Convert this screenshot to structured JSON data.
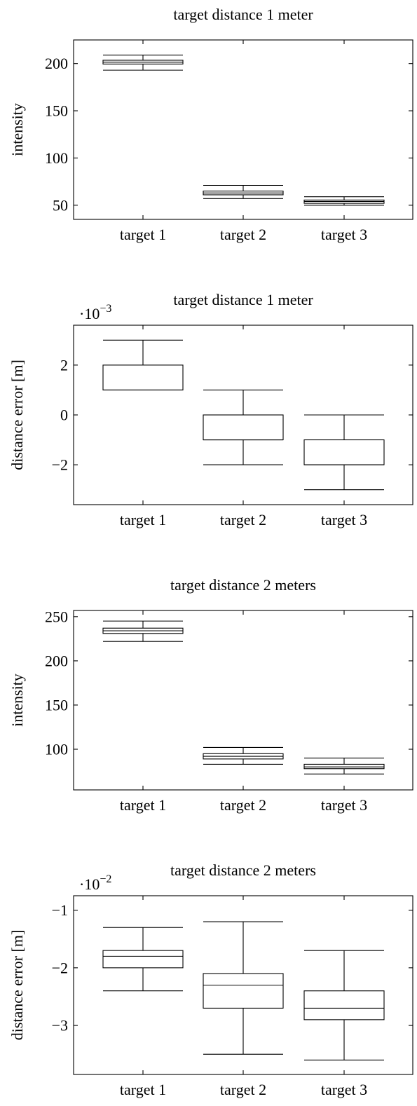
{
  "chart_data": [
    {
      "type": "box",
      "title": "target distance 1 meter",
      "ylabel": "intensity",
      "xlabel": "",
      "categories": [
        "target 1",
        "target 2",
        "target 3"
      ],
      "ylim": [
        35,
        225
      ],
      "yticks": [
        50,
        100,
        150,
        200
      ],
      "ytick_labels": [
        "50",
        "100",
        "150",
        "200"
      ],
      "exponent_label": "",
      "boxes": [
        {
          "whisker_low": 193,
          "q1": 199.5,
          "median": 201.5,
          "q3": 203.5,
          "whisker_high": 209
        },
        {
          "whisker_low": 57,
          "q1": 61,
          "median": 63,
          "q3": 65,
          "whisker_high": 71
        },
        {
          "whisker_low": 50,
          "q1": 52,
          "median": 54,
          "q3": 55.5,
          "whisker_high": 59
        }
      ],
      "grid": false
    },
    {
      "type": "box",
      "title": "target distance 1 meter",
      "ylabel": "distance error [m]",
      "xlabel": "",
      "categories": [
        "target 1",
        "target 2",
        "target 3"
      ],
      "ylim": [
        -3.6,
        3.6
      ],
      "yticks": [
        -2,
        0,
        2
      ],
      "ytick_labels": [
        "−2",
        "0",
        "2"
      ],
      "exponent_label": "·10",
      "exponent_power": "−3",
      "boxes": [
        {
          "whisker_low": 1,
          "q1": 1,
          "median": 1,
          "q3": 2,
          "whisker_high": 3
        },
        {
          "whisker_low": -2,
          "q1": -1,
          "median": -1,
          "q3": 0,
          "whisker_high": 1
        },
        {
          "whisker_low": -3,
          "q1": -2,
          "median": -2,
          "q3": -1,
          "whisker_high": 0
        }
      ],
      "grid": false
    },
    {
      "type": "box",
      "title": "target distance 2 meters",
      "ylabel": "intensity",
      "xlabel": "",
      "categories": [
        "target 1",
        "target 2",
        "target 3"
      ],
      "ylim": [
        54,
        257
      ],
      "yticks": [
        100,
        150,
        200,
        250
      ],
      "ytick_labels": [
        "100",
        "150",
        "200",
        "250"
      ],
      "exponent_label": "",
      "boxes": [
        {
          "whisker_low": 222,
          "q1": 231,
          "median": 234,
          "q3": 237,
          "whisker_high": 245
        },
        {
          "whisker_low": 83,
          "q1": 89,
          "median": 92,
          "q3": 95,
          "whisker_high": 102
        },
        {
          "whisker_low": 72,
          "q1": 78,
          "median": 80,
          "q3": 83,
          "whisker_high": 90
        }
      ],
      "grid": false
    },
    {
      "type": "box",
      "title": "target distance 2 meters",
      "ylabel": "distance error [m]",
      "xlabel": "",
      "categories": [
        "target 1",
        "target 2",
        "target 3"
      ],
      "ylim": [
        -3.85,
        -0.75
      ],
      "yticks": [
        -3,
        -2,
        -1
      ],
      "ytick_labels": [
        "−3",
        "−2",
        "−1"
      ],
      "exponent_label": "·10",
      "exponent_power": "−2",
      "boxes": [
        {
          "whisker_low": -2.4,
          "q1": -2.0,
          "median": -1.8,
          "q3": -1.7,
          "whisker_high": -1.3
        },
        {
          "whisker_low": -3.5,
          "q1": -2.7,
          "median": -2.3,
          "q3": -2.1,
          "whisker_high": -1.2
        },
        {
          "whisker_low": -3.6,
          "q1": -2.9,
          "median": -2.7,
          "q3": -2.4,
          "whisker_high": -1.7
        }
      ],
      "grid": false
    }
  ]
}
